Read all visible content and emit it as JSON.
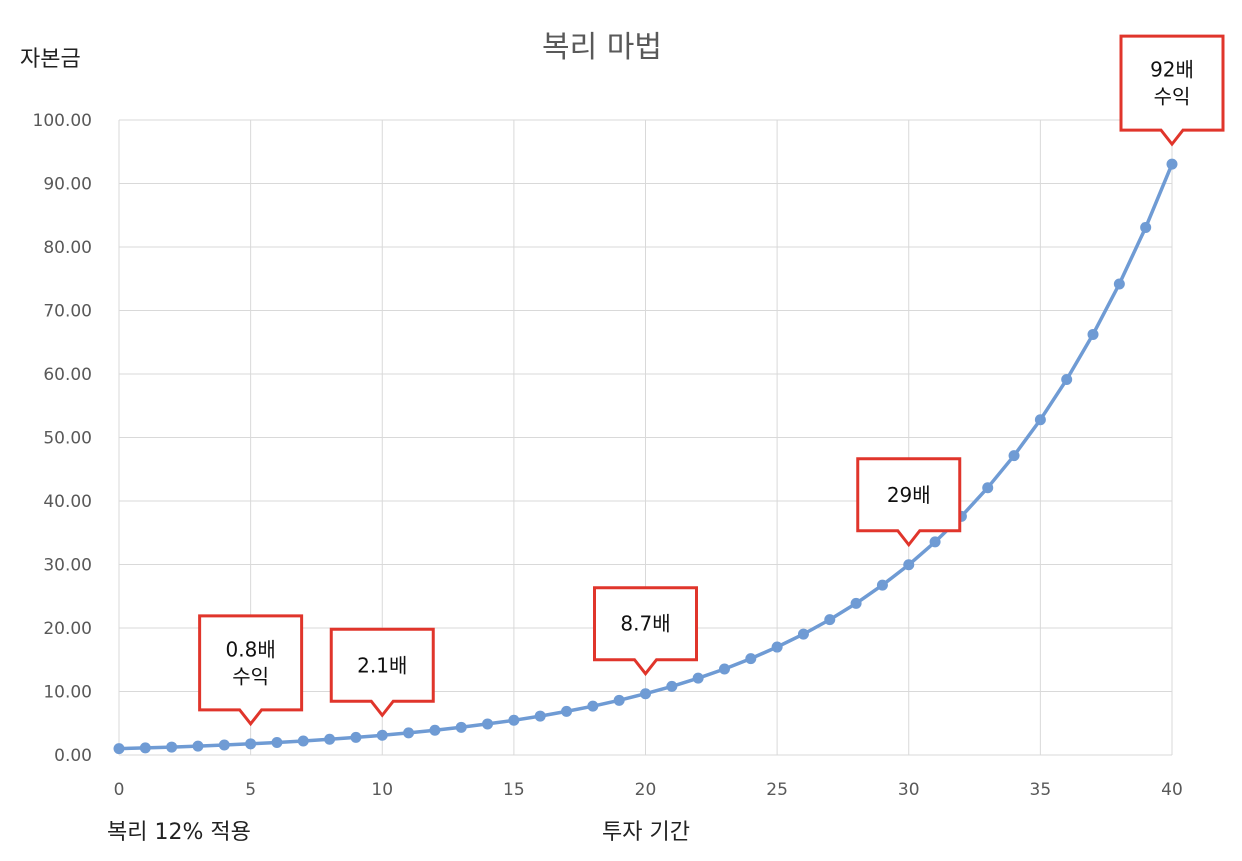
{
  "chart_data": {
    "type": "line",
    "title": "복리 마법",
    "ylabel": "자본금",
    "xlabel": "투자 기간",
    "note": "복리 12% 적용",
    "xlim": [
      0,
      40
    ],
    "ylim": [
      0,
      100
    ],
    "x_ticks": [
      "0",
      "5",
      "10",
      "15",
      "20",
      "25",
      "30",
      "35",
      "40"
    ],
    "y_ticks": [
      "0.00",
      "10.00",
      "20.00",
      "30.00",
      "40.00",
      "50.00",
      "60.00",
      "70.00",
      "80.00",
      "90.00",
      "100.00"
    ],
    "grid": true,
    "series": [
      {
        "color": "#6f9bd4",
        "x": [
          0,
          1,
          2,
          3,
          4,
          5,
          6,
          7,
          8,
          9,
          10,
          11,
          12,
          13,
          14,
          15,
          16,
          17,
          18,
          19,
          20,
          21,
          22,
          23,
          24,
          25,
          26,
          27,
          28,
          29,
          30,
          31,
          32,
          33,
          34,
          35,
          36,
          37,
          38,
          39,
          40
        ],
        "values": [
          1.0,
          1.12,
          1.25,
          1.4,
          1.57,
          1.76,
          1.97,
          2.21,
          2.48,
          2.77,
          3.11,
          3.48,
          3.9,
          4.36,
          4.89,
          5.47,
          6.13,
          6.87,
          7.69,
          8.61,
          9.65,
          10.8,
          12.1,
          13.55,
          15.18,
          17.0,
          19.04,
          21.32,
          23.88,
          26.75,
          29.96,
          33.56,
          37.58,
          42.09,
          47.14,
          52.8,
          59.14,
          66.23,
          74.18,
          83.08,
          93.05
        ]
      }
    ],
    "annotations": [
      {
        "lines": [
          "0.8배",
          "수익"
        ],
        "x": 5
      },
      {
        "lines": [
          "2.1배"
        ],
        "x": 10
      },
      {
        "lines": [
          "8.7배"
        ],
        "x": 20
      },
      {
        "lines": [
          "29배"
        ],
        "x": 30
      },
      {
        "lines": [
          "92배",
          "수익"
        ],
        "x": 40
      }
    ]
  }
}
